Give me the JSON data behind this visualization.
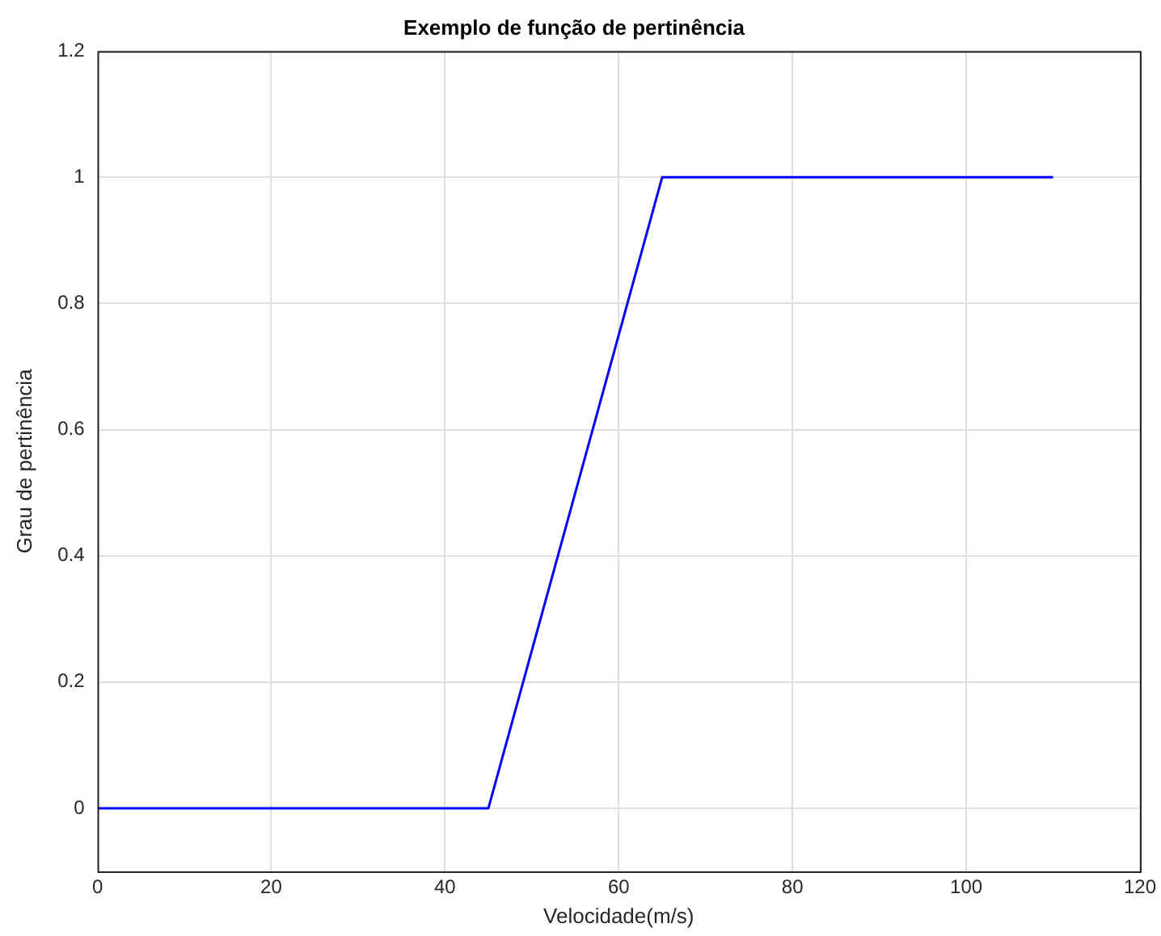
{
  "chart_data": {
    "type": "line",
    "title": "Exemplo de função de pertinência",
    "xlabel": "Velocidade(m/s)",
    "ylabel": "Grau de pertinência",
    "x": [
      0,
      45,
      65,
      110
    ],
    "series": [
      {
        "color": "#0000ff",
        "values": [
          0,
          0,
          1,
          1
        ]
      }
    ],
    "xlim": [
      0,
      120
    ],
    "xticks": [
      0,
      20,
      40,
      60,
      80,
      100,
      120
    ],
    "ylim": [
      -0.1,
      1.2
    ],
    "yticks": [
      0,
      0.2,
      0.4,
      0.6,
      0.8,
      1,
      1.2
    ],
    "grid": true,
    "legend": false,
    "marker": "none",
    "line_style": "solid"
  }
}
